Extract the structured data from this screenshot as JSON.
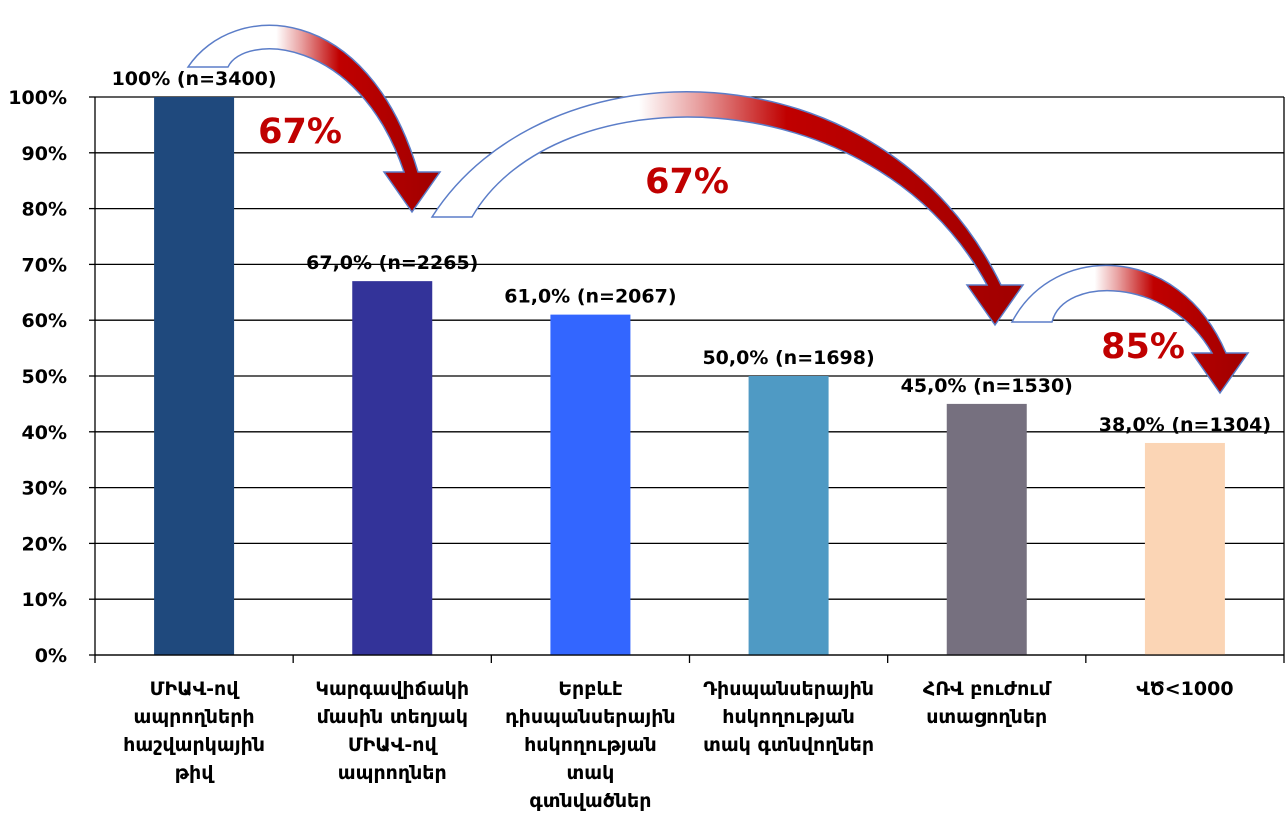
{
  "chart_data": {
    "type": "bar",
    "categories": [
      "ՄԻԱՎ-ով ապրողների հաշվարկային թիվ",
      "Կարգավիճակի մասին տեղյակ ՄԻԱՎ-ով ապրողներ",
      "Երբևէ դիսպանսերային հսկողության տակ գտնվածներ",
      "Դիսպանսերային հսկողության տակ գտնվողներ",
      "ՀՌՎ բուժում ստացողներ",
      "ՎԾ<1000"
    ],
    "category_lines": [
      [
        "ՄԻԱՎ-ով",
        "ապրողների",
        "հաշվարկային",
        "թիվ"
      ],
      [
        "Կարգավիճակի",
        "մասին տեղյակ",
        "ՄԻԱՎ-ով",
        "ապրողներ"
      ],
      [
        "Երբևէ",
        "դիսպանսերային",
        "հսկողության",
        "տակ",
        "գտնվածներ"
      ],
      [
        "Դիսպանսերային",
        "հսկողության",
        "տակ գտնվողներ"
      ],
      [
        "ՀՌՎ բուժում",
        "ստացողներ"
      ],
      [
        "ՎԾ<1000"
      ]
    ],
    "values": [
      100,
      67,
      61,
      50,
      45,
      38
    ],
    "data_labels": [
      "100% (n=3400)",
      "67,0% (n=2265)",
      "61,0% (n=2067)",
      "50,0% (n=1698)",
      "45,0% (n=1530)",
      "38,0% (n=1304)"
    ],
    "bar_colors": [
      "#1F497D",
      "#333399",
      "#3366FF",
      "#4F9AC4",
      "#76707F",
      "#FBD5B5"
    ],
    "ylim": [
      0,
      100
    ],
    "yticks": [
      "0%",
      "10%",
      "20%",
      "30%",
      "40%",
      "50%",
      "60%",
      "70%",
      "80%",
      "90%",
      "100%"
    ],
    "grid": true,
    "title": "",
    "xlabel": "",
    "ylabel": "",
    "annotations": [
      {
        "text": "67%",
        "from": 0,
        "to": 1
      },
      {
        "text": "67%",
        "from": 1,
        "to": 4
      },
      {
        "text": "85%",
        "from": 4,
        "to": 5
      }
    ],
    "annotation_color": "#C00000",
    "arrow_color": "#C00000"
  }
}
